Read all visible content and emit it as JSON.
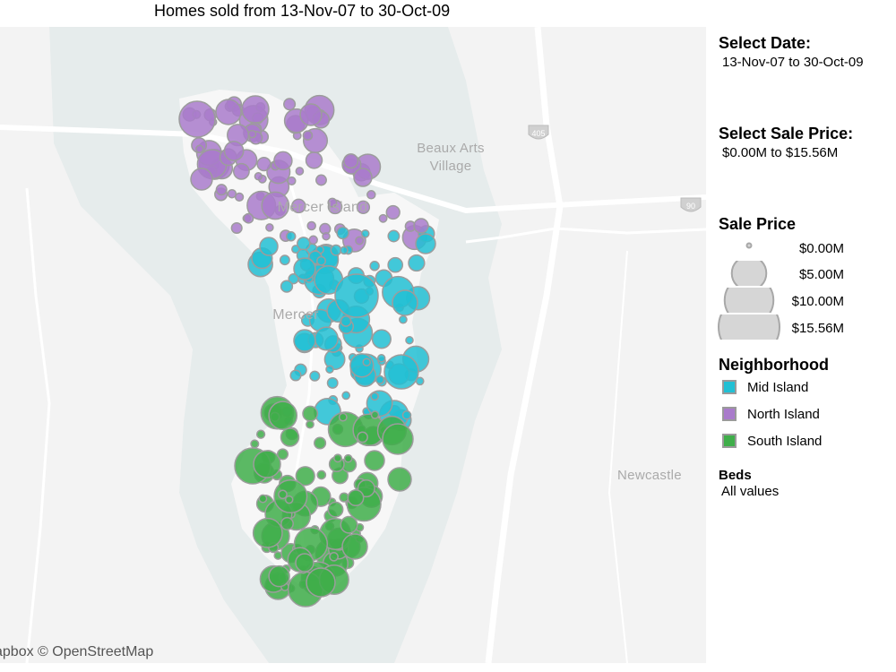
{
  "title": "Homes sold from 13-Nov-07 to 30-Oct-09",
  "map": {
    "attribution": "apbox © OpenStreetMap",
    "place_labels": [
      "Beaux Arts",
      "Village",
      "Mercer Island",
      "Mercer",
      "Newcastle"
    ],
    "highway_shields": [
      "405",
      "90"
    ],
    "colors": {
      "land": "#f3f3f3",
      "water": "#e6ecec",
      "roads": "#ffffff",
      "mid": "#22c0d4",
      "north": "#a97bcb",
      "south": "#3fae4a",
      "stroke": "#9c9c9c"
    }
  },
  "filters": {
    "date": {
      "label": "Select Date:",
      "value": "13-Nov-07 to 30-Oct-09"
    },
    "price": {
      "label": "Select Sale Price:",
      "value": "$0.00M to $15.56M"
    },
    "beds": {
      "label": "Beds",
      "value": "All values"
    }
  },
  "size_legend": {
    "title": "Sale Price",
    "items": [
      {
        "label": "$0.00M",
        "value": 0
      },
      {
        "label": "$5.00M",
        "value": 5.0
      },
      {
        "label": "$10.00M",
        "value": 10.0
      },
      {
        "label": "$15.56M",
        "value": 15.56
      }
    ]
  },
  "color_legend": {
    "title": "Neighborhood",
    "items": [
      {
        "label": "Mid Island",
        "color": "#22c0d4"
      },
      {
        "label": "North Island",
        "color": "#a97bcb"
      },
      {
        "label": "South Island",
        "color": "#3fae4a"
      }
    ]
  }
}
